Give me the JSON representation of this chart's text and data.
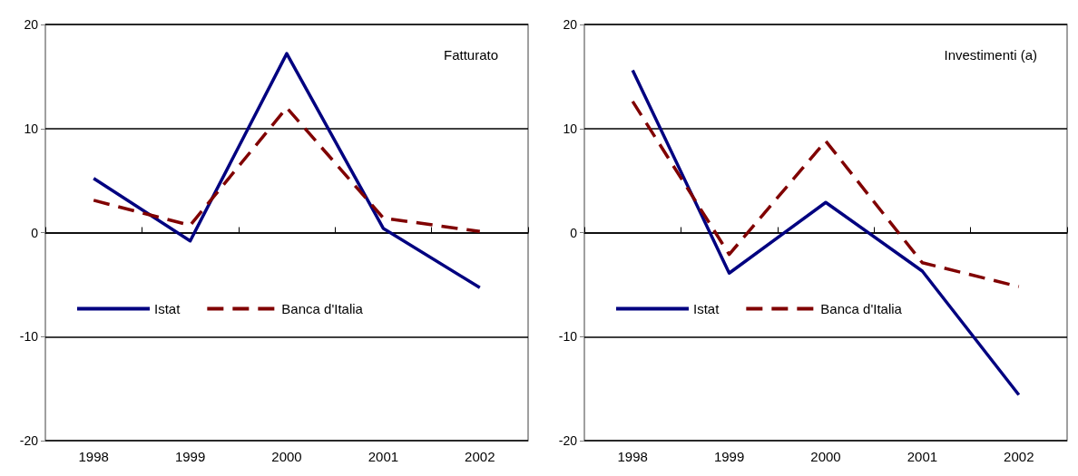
{
  "chart_data": [
    {
      "type": "line",
      "title": "Fatturato",
      "categories": [
        "1998",
        "1999",
        "2000",
        "2001",
        "2002"
      ],
      "series": [
        {
          "name": "Istat",
          "color": "#000080",
          "line_style": "solid",
          "values": [
            5.2,
            -0.8,
            17.2,
            0.4,
            -5.3
          ]
        },
        {
          "name": "Banca d'Italia",
          "color": "#800000",
          "line_style": "dashed",
          "values": [
            3.1,
            0.7,
            12,
            1.4,
            0.1
          ]
        }
      ],
      "ylim": [
        -20,
        20
      ],
      "yticks": [
        -20,
        -10,
        0,
        10,
        20
      ],
      "grid": "y",
      "legend": "bottom left",
      "marker": "none"
    },
    {
      "type": "line",
      "title": "Investimenti (a)",
      "categories": [
        "1998",
        "1999",
        "2000",
        "2001",
        "2002"
      ],
      "series": [
        {
          "name": "Istat",
          "color": "#000080",
          "line_style": "solid",
          "values": [
            15.6,
            -3.9,
            2.9,
            -3.7,
            -15.6
          ]
        },
        {
          "name": "Banca d'Italia",
          "color": "#800000",
          "line_style": "dashed",
          "values": [
            12.6,
            -2.1,
            8.8,
            -2.9,
            -5.2
          ]
        }
      ],
      "ylim": [
        -20,
        20
      ],
      "yticks": [
        -20,
        -10,
        0,
        10,
        20
      ],
      "grid": "y",
      "legend": "bottom left",
      "marker": "none"
    }
  ]
}
